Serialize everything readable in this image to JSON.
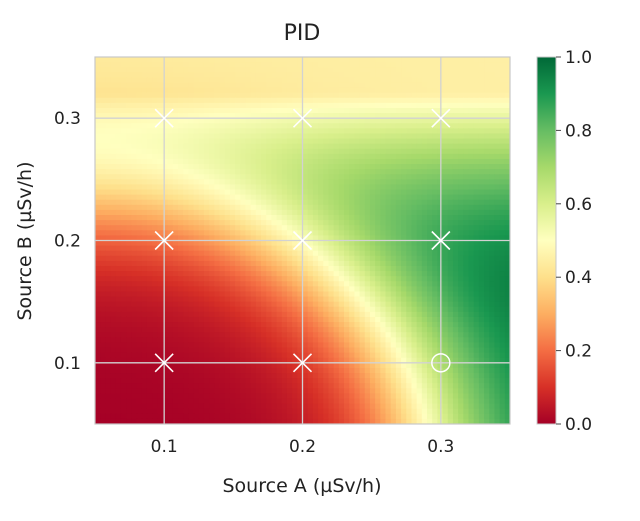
{
  "chart_data": {
    "type": "heatmap",
    "title": "PID",
    "xlabel": "Source A (µSv/h)",
    "ylabel": "Source B (µSv/h)",
    "xlim": [
      0.05,
      0.35
    ],
    "ylim": [
      0.05,
      0.35
    ],
    "x_ticks": [
      "0.1",
      "0.2",
      "0.3"
    ],
    "x_tick_values": [
      0.1,
      0.2,
      0.3
    ],
    "y_ticks": [
      "0.1",
      "0.2",
      "0.3"
    ],
    "y_tick_values": [
      0.1,
      0.2,
      0.3
    ],
    "grid": true,
    "colormap": "RdYlGn",
    "colormap_stops": [
      "#a50026",
      "#d73027",
      "#f46d43",
      "#fdae61",
      "#fee08b",
      "#ffffbf",
      "#d9ef8b",
      "#a6d96a",
      "#66bd63",
      "#1a9850",
      "#006837"
    ],
    "colorbar": {
      "range": [
        0.0,
        1.0
      ],
      "ticks": [
        "0.0",
        "0.2",
        "0.4",
        "0.6",
        "0.8",
        "1.0"
      ],
      "tick_values": [
        0.0,
        0.2,
        0.4,
        0.6,
        0.8,
        1.0
      ],
      "position": "right"
    },
    "markers": [
      {
        "x": 0.1,
        "y": 0.1,
        "symbol": "x"
      },
      {
        "x": 0.2,
        "y": 0.1,
        "symbol": "x"
      },
      {
        "x": 0.3,
        "y": 0.1,
        "symbol": "circle"
      },
      {
        "x": 0.1,
        "y": 0.2,
        "symbol": "x"
      },
      {
        "x": 0.2,
        "y": 0.2,
        "symbol": "x"
      },
      {
        "x": 0.3,
        "y": 0.2,
        "symbol": "x"
      },
      {
        "x": 0.1,
        "y": 0.3,
        "symbol": "x"
      },
      {
        "x": 0.2,
        "y": 0.3,
        "symbol": "x"
      },
      {
        "x": 0.3,
        "y": 0.3,
        "symbol": "x"
      }
    ]
  }
}
